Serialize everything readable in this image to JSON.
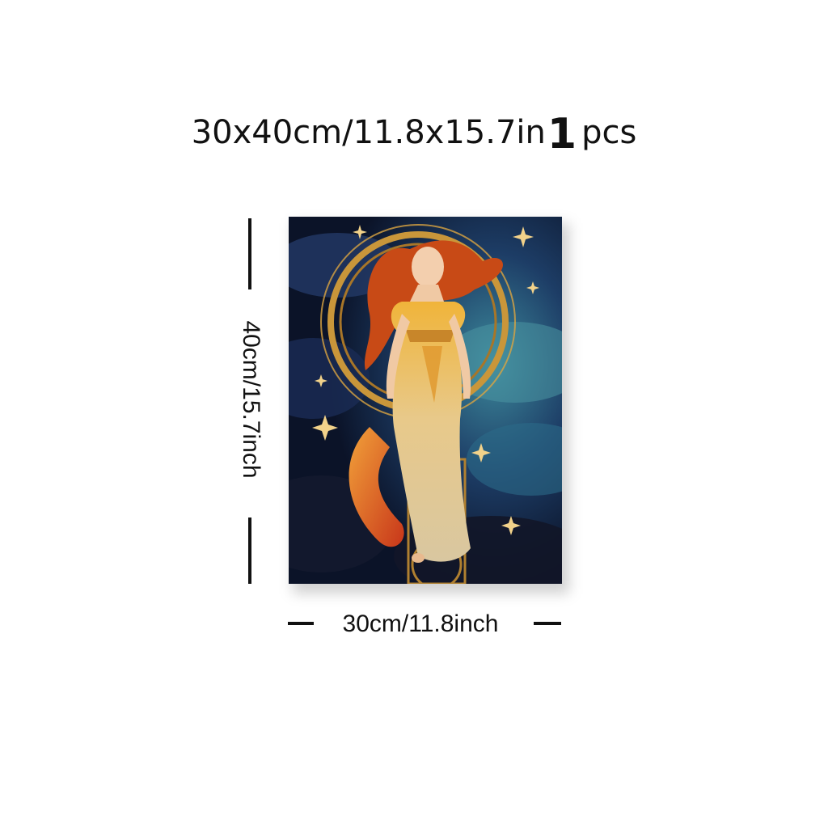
{
  "title": {
    "size": "30x40cm/11.8x15.7in",
    "quantity": "1",
    "unit": "pcs"
  },
  "dimensions": {
    "height_label": "40cm/15.7inch",
    "width_label": "30cm/11.8inch"
  },
  "colors": {
    "background": "#ffffff",
    "text": "#111111",
    "sky_dark": "#0d1a33",
    "sky_teal": "#3d8a9c",
    "gold": "#d9a441",
    "hair": "#c84a16"
  }
}
